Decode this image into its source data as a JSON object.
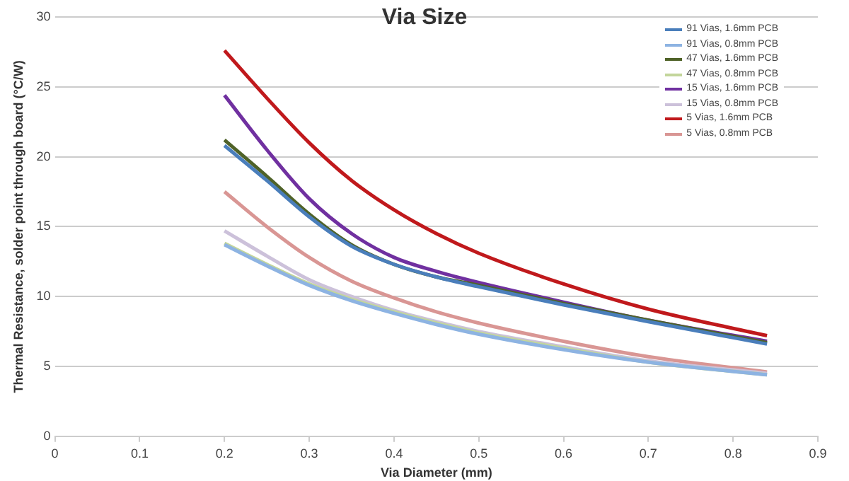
{
  "chart_data": {
    "type": "line",
    "title": "Via Size",
    "xlabel": "Via Diameter (mm)",
    "ylabel": "Thermal Resistance, solder point through board (°C/W)",
    "x": [
      0.2,
      0.25,
      0.3,
      0.35,
      0.4,
      0.45,
      0.5,
      0.6,
      0.7,
      0.84
    ],
    "xlim": [
      0,
      0.9
    ],
    "xticks": [
      0,
      0.1,
      0.2,
      0.3,
      0.4,
      0.5,
      0.6,
      0.7,
      0.8,
      0.9
    ],
    "ylim": [
      0,
      30
    ],
    "yticks": [
      0,
      5,
      10,
      15,
      20,
      25,
      30
    ],
    "grid": "y",
    "legend": "top right",
    "marker": "none",
    "line_style": "solid",
    "series": [
      {
        "name": "91 Vias, 1.6mm PCB",
        "color": "#4a7ebb",
        "values": [
          20.8,
          18.3,
          15.7,
          13.6,
          12.3,
          11.4,
          10.7,
          9.4,
          8.2,
          6.6
        ]
      },
      {
        "name": "91 Vias, 0.8mm PCB",
        "color": "#8db3e2",
        "values": [
          13.7,
          12.2,
          10.8,
          9.7,
          8.8,
          8.0,
          7.3,
          6.2,
          5.3,
          4.4
        ]
      },
      {
        "name": "47 Vias, 1.6mm PCB",
        "color": "#4f6228",
        "values": [
          21.2,
          18.6,
          15.9,
          13.7,
          12.3,
          11.4,
          10.8,
          9.5,
          8.3,
          6.7
        ]
      },
      {
        "name": "47 Vias, 0.8mm PCB",
        "color": "#c3d69b",
        "values": [
          13.8,
          12.3,
          10.9,
          9.8,
          8.9,
          8.1,
          7.4,
          6.3,
          5.3,
          4.4
        ]
      },
      {
        "name": "15 Vias, 1.6mm PCB",
        "color": "#7030a0",
        "values": [
          24.4,
          20.5,
          17.0,
          14.5,
          12.8,
          11.8,
          11.0,
          9.6,
          8.3,
          6.8
        ]
      },
      {
        "name": "15 Vias, 0.8mm PCB",
        "color": "#ccc1da",
        "values": [
          14.7,
          12.9,
          11.2,
          10.0,
          9.0,
          8.2,
          7.5,
          6.4,
          5.4,
          4.5
        ]
      },
      {
        "name": "5 Vias, 1.6mm PCB",
        "color": "#c0191c",
        "values": [
          27.6,
          24.2,
          21.0,
          18.3,
          16.2,
          14.5,
          13.1,
          10.9,
          9.1,
          7.2
        ]
      },
      {
        "name": "5 Vias, 0.8mm PCB",
        "color": "#d99694",
        "values": [
          17.5,
          15.0,
          12.8,
          11.1,
          9.9,
          8.9,
          8.1,
          6.8,
          5.7,
          4.6
        ]
      }
    ]
  }
}
